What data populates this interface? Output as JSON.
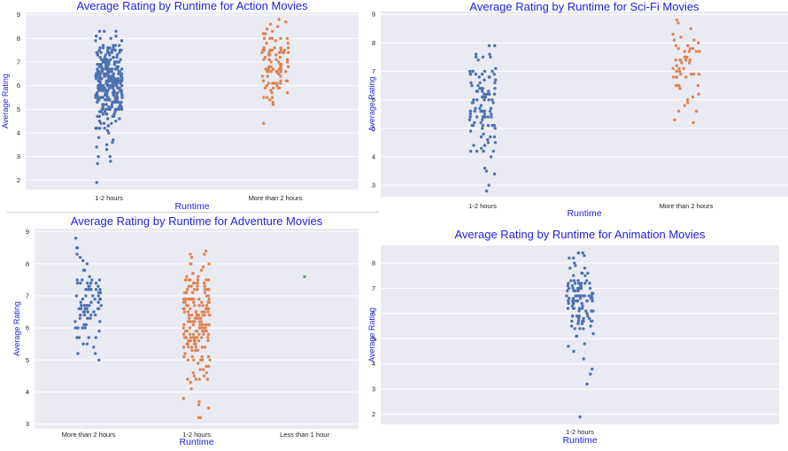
{
  "palette": [
    "#4c72b0",
    "#dd8452",
    "#55a868"
  ],
  "chart_data": [
    {
      "type": "scatter",
      "style": "strip",
      "title": "Average Rating by Runtime for Action Movies",
      "xlabel": "Runtime",
      "ylabel": "Average Rating",
      "categories": [
        "1-2 hours",
        "More than 2 hours"
      ],
      "ylim": [
        1.6,
        9.1
      ],
      "yticks": [
        2,
        3,
        4,
        5,
        6,
        7,
        8,
        9
      ],
      "grid": true,
      "series": [
        {
          "category": "1-2 hours",
          "count": 320,
          "values": [
            1.9,
            2.7,
            2.8,
            3.0,
            3.4,
            3.6,
            4.0,
            4.3,
            4.5,
            4.7,
            5.0,
            5.3,
            5.6,
            5.9,
            6.2,
            6.5,
            6.8,
            7.1,
            7.4,
            7.7,
            8.0,
            8.1,
            8.3
          ],
          "range": [
            1.9,
            8.3
          ],
          "center": 6.1,
          "spread": 0.9
        },
        {
          "category": "More than 2 hours",
          "count": 95,
          "values": [
            4.4,
            5.2,
            5.5,
            5.9,
            6.2,
            6.4,
            6.6,
            6.8,
            7.0,
            7.2,
            7.5,
            7.8,
            8.0,
            8.2,
            8.5,
            8.8
          ],
          "range": [
            4.4,
            8.8
          ],
          "center": 6.8,
          "spread": 0.75
        }
      ]
    },
    {
      "type": "scatter",
      "style": "strip",
      "title": "Average Rating by Runtime for Sci-Fi Movies",
      "xlabel": "Runtime",
      "ylabel": "Average Rating",
      "categories": [
        "1-2 hours",
        "More than 2 hours"
      ],
      "ylim": [
        2.6,
        9.1
      ],
      "yticks": [
        3,
        4,
        5,
        6,
        7,
        8,
        9
      ],
      "grid": true,
      "series": [
        {
          "category": "1-2 hours",
          "count": 110,
          "values": [
            2.8,
            3.0,
            3.4,
            3.5,
            3.6,
            4.0,
            4.2,
            4.5,
            4.8,
            5.1,
            5.4,
            5.7,
            6.0,
            6.3,
            6.6,
            6.9,
            7.1,
            7.4,
            7.6,
            7.9
          ],
          "range": [
            2.8,
            7.9
          ],
          "center": 6.0,
          "spread": 0.85
        },
        {
          "category": "More than 2 hours",
          "count": 55,
          "values": [
            5.2,
            5.3,
            5.6,
            5.9,
            6.2,
            6.5,
            6.8,
            7.1,
            7.4,
            7.7,
            8.0,
            8.1,
            8.5,
            8.8
          ],
          "range": [
            5.2,
            8.8
          ],
          "center": 7.0,
          "spread": 0.8
        }
      ]
    },
    {
      "type": "scatter",
      "style": "strip",
      "title": "Average Rating by Runtime for Adventure Movies",
      "xlabel": "Runtime",
      "ylabel": "Average Rating",
      "categories": [
        "More than 2 hours",
        "1-2 hours",
        "Less than 1 hour"
      ],
      "ylim": [
        2.85,
        9.1
      ],
      "yticks": [
        3,
        4,
        5,
        6,
        7,
        8,
        9
      ],
      "grid": true,
      "series": [
        {
          "category": "More than 2 hours",
          "count": 90,
          "values": [
            5.0,
            5.2,
            5.4,
            5.7,
            6.0,
            6.3,
            6.6,
            6.9,
            7.2,
            7.5,
            7.8,
            8.1,
            8.5,
            8.8
          ],
          "range": [
            5.0,
            8.8
          ],
          "center": 6.9,
          "spread": 0.7
        },
        {
          "category": "1-2 hours",
          "count": 200,
          "values": [
            3.2,
            3.5,
            3.8,
            4.1,
            4.4,
            4.7,
            5.0,
            5.3,
            5.6,
            5.9,
            6.2,
            6.5,
            6.8,
            7.1,
            7.4,
            7.7,
            8.0,
            8.2,
            8.4
          ],
          "range": [
            3.2,
            8.4
          ],
          "center": 6.2,
          "spread": 0.9
        },
        {
          "category": "Less than 1 hour",
          "count": 1,
          "values": [
            7.6
          ],
          "range": [
            7.6,
            7.6
          ],
          "center": 7.6,
          "spread": 0
        }
      ]
    },
    {
      "type": "scatter",
      "style": "strip",
      "title": "Average Rating by Runtime for Animation Movies",
      "xlabel": "Runtime",
      "ylabel": "Average Rating",
      "categories": [
        "1-2 hours"
      ],
      "ylim": [
        1.6,
        8.7
      ],
      "yticks": [
        2,
        3,
        4,
        5,
        6,
        7,
        8
      ],
      "grid": true,
      "series": [
        {
          "category": "1-2 hours",
          "count": 115,
          "values": [
            1.9,
            3.2,
            3.6,
            3.8,
            4.2,
            4.5,
            4.8,
            5.1,
            5.4,
            5.7,
            6.0,
            6.3,
            6.6,
            6.9,
            7.2,
            7.5,
            7.8,
            8.0,
            8.2,
            8.4
          ],
          "range": [
            1.9,
            8.4
          ],
          "center": 6.6,
          "spread": 0.75
        }
      ]
    }
  ]
}
